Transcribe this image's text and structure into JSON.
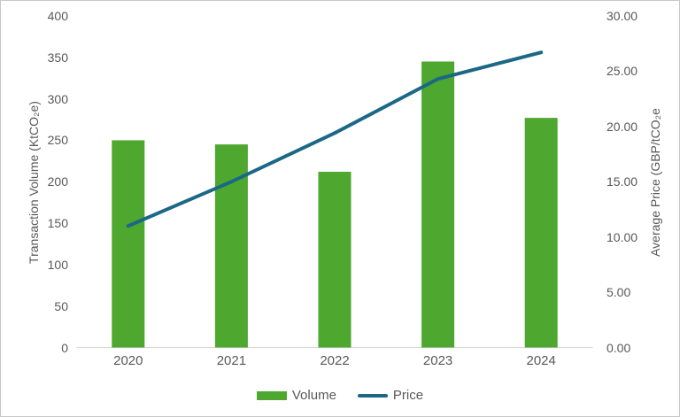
{
  "chart_data": {
    "type": "combo",
    "title": "",
    "categories": [
      "2020",
      "2021",
      "2022",
      "2023",
      "2024"
    ],
    "series": [
      {
        "name": "Volume",
        "type": "bar",
        "axis": "left",
        "color": "#4ea72e",
        "values": [
          250,
          245,
          212,
          345,
          277
        ]
      },
      {
        "name": "Price",
        "type": "line",
        "axis": "right",
        "color": "#1b6886",
        "values": [
          11.0,
          15.0,
          19.4,
          24.3,
          26.7
        ]
      }
    ],
    "left_axis": {
      "label": "Transaction Volume (KtCO₂e)",
      "min": 0,
      "max": 400,
      "step": 50,
      "tick_labels": [
        "0",
        "50",
        "100",
        "150",
        "200",
        "250",
        "300",
        "350",
        "400"
      ]
    },
    "right_axis": {
      "label": "Average Price (GBP/tCO₂e",
      "min": 0,
      "max": 30,
      "step": 5,
      "tick_labels": [
        "0.00",
        "5.00",
        "10.00",
        "15.00",
        "20.00",
        "25.00",
        "30.00"
      ]
    },
    "grid": false,
    "legend_position": "bottom",
    "axis_line_color": "#d9d9d9",
    "text_color": "#595959"
  }
}
